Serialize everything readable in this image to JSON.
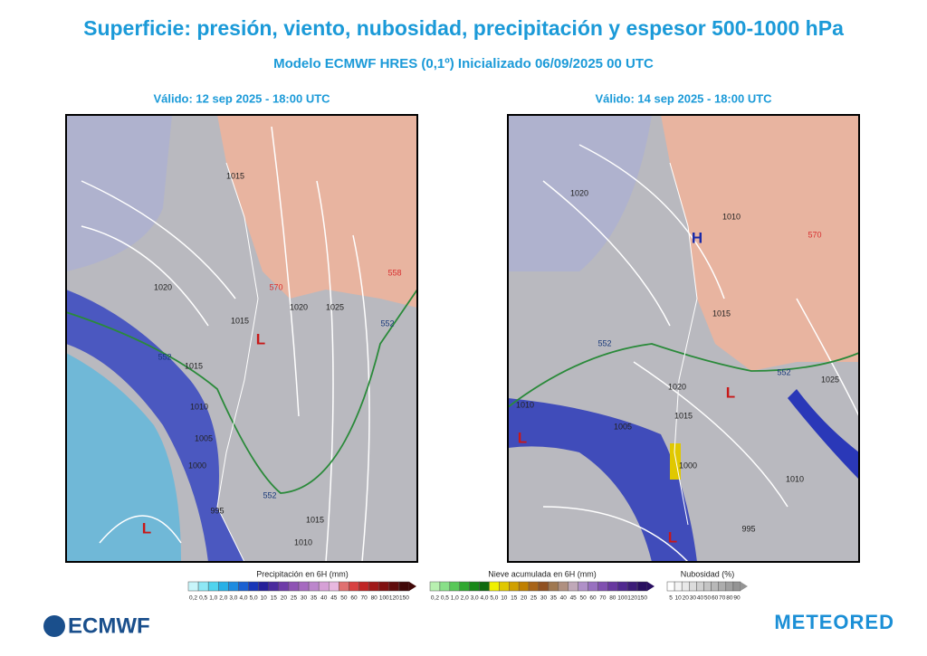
{
  "header": {
    "title": "Superficie: presión, viento, nubosidad, precipitación y espesor 500-1000 hPa",
    "subtitle": "Modelo ECMWF HRES (0,1º)  Inicializado 06/09/2025 00 UTC"
  },
  "maps": [
    {
      "valid": "Válido: 12 sep 2025 - 18:00 UTC",
      "labels": [
        "1020",
        "1015",
        "1015",
        "1020",
        "1025",
        "1015",
        "1010",
        "1005",
        "1000",
        "995",
        "1015",
        "1010",
        "L",
        "L",
        "552",
        "552",
        "552",
        "570",
        "558"
      ]
    },
    {
      "valid": "Válido: 14 sep 2025 - 18:00 UTC",
      "labels": [
        "1020",
        "1015",
        "1010",
        "1020",
        "1015",
        "1005",
        "1000",
        "1010",
        "995",
        "1025",
        "1010",
        "H",
        "L",
        "L",
        "L",
        "552",
        "552",
        "570"
      ]
    }
  ],
  "legends": [
    {
      "title": "Precipitación en 6H (mm)",
      "ticks": [
        "0,2",
        "0,5",
        "1,0",
        "2,0",
        "3,0",
        "4,0",
        "5,0",
        "10",
        "15",
        "20",
        "25",
        "30",
        "35",
        "40",
        "45",
        "50",
        "60",
        "70",
        "80",
        "100",
        "120",
        "150"
      ],
      "colors": [
        "#c8f5fa",
        "#8ee8f5",
        "#50d4ee",
        "#28b0e6",
        "#1e8ce0",
        "#1a60d2",
        "#1836b8",
        "#26209a",
        "#4a2a9e",
        "#6e3aa8",
        "#8e52b4",
        "#a66ac0",
        "#bc86cc",
        "#d6a0d6",
        "#e8b8e0",
        "#e07070",
        "#d84040",
        "#c02424",
        "#a01818",
        "#801010",
        "#600c0c",
        "#400808"
      ]
    },
    {
      "title": "Nieve acumulada en 6H (mm)",
      "ticks": [
        "0,2",
        "0,5",
        "1,0",
        "2,0",
        "3,0",
        "4,0",
        "5,0",
        "10",
        "15",
        "20",
        "25",
        "30",
        "35",
        "40",
        "45",
        "50",
        "60",
        "70",
        "80",
        "100",
        "120",
        "150"
      ],
      "colors": [
        "#b8f0b0",
        "#88e088",
        "#58c858",
        "#30a830",
        "#188818",
        "#0e6a0e",
        "#f0f000",
        "#e0c800",
        "#d0a000",
        "#c08000",
        "#a86418",
        "#905020",
        "#a07850",
        "#b09080",
        "#c0a8b8",
        "#b090c8",
        "#9870c0",
        "#8050b0",
        "#6838a0",
        "#502890",
        "#3c1c78",
        "#280e60"
      ]
    },
    {
      "title": "Nubosidad (%)",
      "ticks": [
        "5",
        "10",
        "20",
        "30",
        "40",
        "50",
        "60",
        "70",
        "80",
        "90"
      ],
      "colors": [
        "#ffffff",
        "#f4f4f4",
        "#e8e8e8",
        "#dcdcdc",
        "#d0d0d0",
        "#c4c4c4",
        "#b8b8b8",
        "#acacac",
        "#a0a0a0",
        "#949494"
      ]
    }
  ],
  "footer": {
    "left_logo": "ECMWF",
    "right_logo": "METEORED"
  }
}
